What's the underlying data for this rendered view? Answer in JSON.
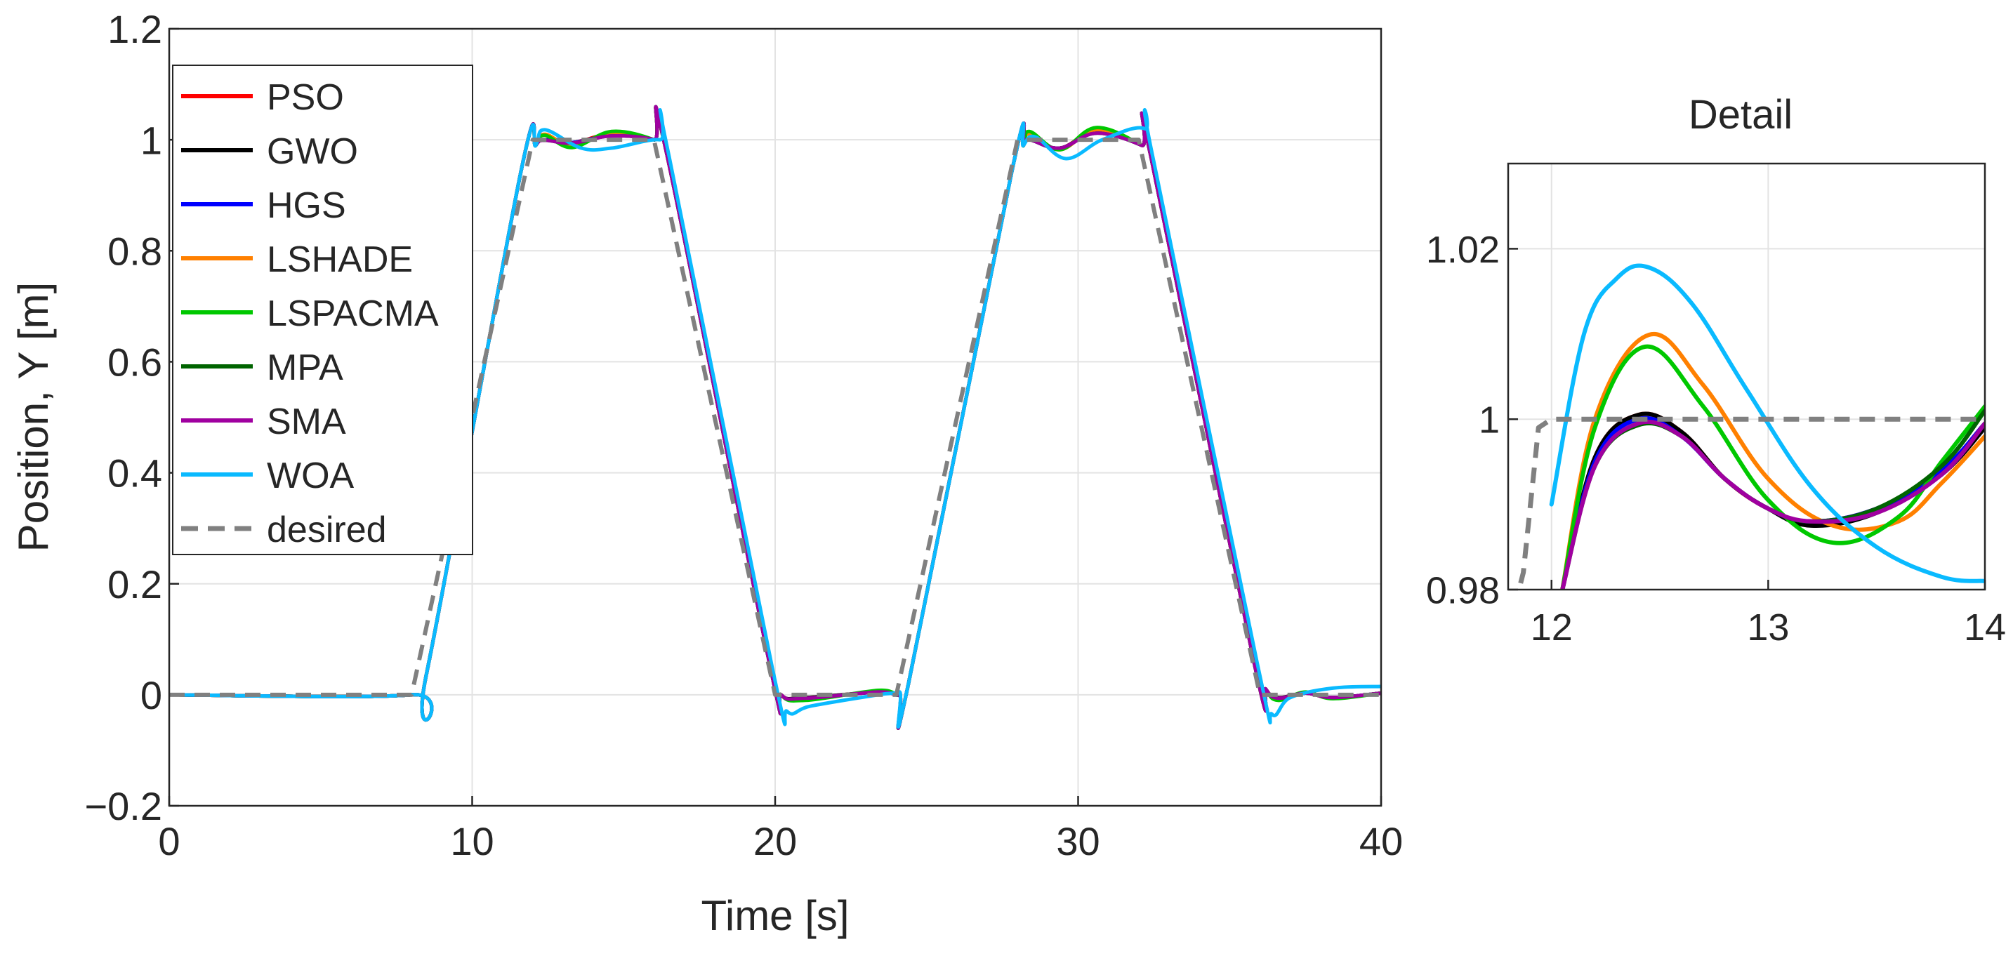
{
  "chart_data": [
    {
      "type": "line",
      "title": "",
      "xlabel": "Time [s]",
      "ylabel": "Position, Y [m]",
      "xlim": [
        0,
        40
      ],
      "ylim": [
        -0.2,
        1.2
      ],
      "xticks": [
        "0",
        "10",
        "20",
        "30",
        "40"
      ],
      "yticks": [
        "−0.2",
        "0",
        "0.2",
        "0.4",
        "0.6",
        "0.8",
        "1",
        "1.2"
      ],
      "grid": true,
      "legend_position": "top-left",
      "series": [
        {
          "name": "PSO",
          "color": "#ff0000",
          "x": [
            0,
            8,
            8.5,
            11.6,
            12.1,
            12.4,
            13.3,
            14.6,
            16.0,
            16.4,
            19.8,
            20.2,
            21.0,
            23.4,
            24.1,
            24.4,
            27.8,
            28.2,
            28.4,
            29.4,
            30.6,
            32.1,
            32.4,
            35.8,
            36.2,
            36.6,
            37.5,
            38.4,
            40
          ],
          "y": [
            0,
            0,
            0.04,
            0.94,
            0.99,
            1.0,
            0.995,
            1.01,
            1.0,
            0.98,
            0.06,
            0.0,
            -0.005,
            0.005,
            0.0,
            0.02,
            0.94,
            0.99,
            1.0,
            0.985,
            1.015,
            0.99,
            0.97,
            0.06,
            0.01,
            -0.005,
            0.003,
            -0.005,
            0.003
          ]
        },
        {
          "name": "GWO",
          "color": "#000000",
          "x": [
            0,
            8,
            8.5,
            11.6,
            12.1,
            12.4,
            13.3,
            14.6,
            16.0,
            16.4,
            19.8,
            20.2,
            21.0,
            23.4,
            24.1,
            24.4,
            27.8,
            28.2,
            28.4,
            29.4,
            30.6,
            32.1,
            32.4,
            35.8,
            36.2,
            36.6,
            37.5,
            38.4,
            40
          ],
          "y": [
            0,
            0,
            0.04,
            0.94,
            0.99,
            1.0,
            0.995,
            1.008,
            1.0,
            0.98,
            0.06,
            0.0,
            -0.005,
            0.005,
            0.0,
            0.02,
            0.94,
            0.99,
            1.0,
            0.985,
            1.013,
            0.99,
            0.97,
            0.06,
            0.01,
            -0.005,
            0.003,
            -0.005,
            0.003
          ]
        },
        {
          "name": "HGS",
          "color": "#0000ff",
          "x": [
            0,
            8,
            8.5,
            11.6,
            12.1,
            12.4,
            13.3,
            14.6,
            16.0,
            16.4,
            19.8,
            20.2,
            21.0,
            23.4,
            24.1,
            24.4,
            27.8,
            28.2,
            28.4,
            29.4,
            30.6,
            32.1,
            32.4,
            35.8,
            36.2,
            36.6,
            37.5,
            38.4,
            40
          ],
          "y": [
            0,
            0,
            0.04,
            0.94,
            0.99,
            1.0,
            0.995,
            1.008,
            1.0,
            0.98,
            0.06,
            0.0,
            -0.006,
            0.005,
            0.0,
            0.02,
            0.94,
            0.99,
            1.0,
            0.985,
            1.013,
            0.99,
            0.97,
            0.06,
            0.01,
            -0.006,
            0.003,
            -0.005,
            0.003
          ]
        },
        {
          "name": "LSHADE",
          "color": "#ff8000",
          "x": [
            0,
            8,
            8.5,
            11.6,
            12.1,
            12.4,
            13.3,
            14.6,
            16.0,
            16.4,
            19.8,
            20.2,
            21.0,
            23.4,
            24.1,
            24.4,
            27.8,
            28.2,
            28.4,
            29.4,
            30.6,
            32.1,
            32.4,
            35.8,
            36.2,
            36.6,
            37.5,
            38.4,
            40
          ],
          "y": [
            0,
            0,
            0.04,
            0.94,
            0.99,
            1.01,
            0.99,
            1.012,
            1.0,
            0.98,
            0.06,
            0.0,
            -0.008,
            0.006,
            0.0,
            0.02,
            0.94,
            0.99,
            1.01,
            0.982,
            1.018,
            0.99,
            0.97,
            0.06,
            0.01,
            -0.008,
            0.004,
            -0.006,
            0.003
          ]
        },
        {
          "name": "LSPACMA",
          "color": "#00c800",
          "x": [
            0,
            8,
            8.5,
            11.6,
            12.1,
            12.4,
            13.3,
            14.6,
            16.0,
            16.4,
            19.8,
            20.2,
            21.0,
            23.4,
            24.1,
            24.4,
            27.8,
            28.2,
            28.4,
            29.4,
            30.6,
            32.1,
            32.4,
            35.8,
            36.2,
            36.6,
            37.5,
            38.4,
            40
          ],
          "y": [
            0,
            0,
            0.04,
            0.94,
            0.99,
            1.008,
            0.986,
            1.015,
            1.0,
            0.98,
            0.06,
            0.0,
            -0.01,
            0.008,
            0.0,
            0.02,
            0.94,
            0.99,
            1.015,
            0.982,
            1.022,
            0.99,
            0.97,
            0.06,
            0.01,
            -0.01,
            0.005,
            -0.007,
            0.003
          ]
        },
        {
          "name": "MPA",
          "color": "#006400",
          "x": [
            0,
            8,
            8.5,
            11.6,
            12.1,
            12.4,
            13.3,
            14.6,
            16.0,
            16.4,
            19.8,
            20.2,
            21.0,
            23.4,
            24.1,
            24.4,
            27.8,
            28.2,
            28.4,
            29.4,
            30.6,
            32.1,
            32.4,
            35.8,
            36.2,
            36.6,
            37.5,
            38.4,
            40
          ],
          "y": [
            0,
            0,
            0.04,
            0.94,
            0.99,
            0.999,
            0.994,
            1.007,
            1.0,
            0.98,
            0.06,
            0.0,
            -0.006,
            0.005,
            0.0,
            0.02,
            0.94,
            0.99,
            1.0,
            0.985,
            1.012,
            0.99,
            0.97,
            0.06,
            0.01,
            -0.006,
            0.003,
            -0.005,
            0.003
          ]
        },
        {
          "name": "SMA",
          "color": "#a000a0",
          "x": [
            0,
            8,
            8.5,
            11.6,
            12.1,
            12.4,
            13.3,
            14.6,
            16.0,
            16.4,
            19.8,
            20.2,
            21.0,
            23.4,
            24.1,
            24.4,
            27.8,
            28.2,
            28.4,
            29.4,
            30.6,
            32.1,
            32.4,
            35.8,
            36.2,
            36.6,
            37.5,
            38.4,
            40
          ],
          "y": [
            0,
            0,
            0.04,
            0.94,
            0.99,
            0.999,
            0.994,
            1.007,
            1.0,
            0.98,
            0.06,
            0.0,
            -0.006,
            0.005,
            0.0,
            0.02,
            0.94,
            0.99,
            1.0,
            0.985,
            1.012,
            0.99,
            0.97,
            0.06,
            0.01,
            -0.006,
            0.003,
            -0.005,
            0.003
          ]
        },
        {
          "name": "WOA",
          "color": "#0abaff",
          "x": [
            0,
            8,
            8.5,
            11.6,
            12.1,
            12.4,
            13.6,
            14.6,
            16.2,
            16.5,
            19.9,
            20.4,
            21.2,
            23.4,
            24.1,
            24.4,
            27.8,
            28.2,
            28.6,
            29.6,
            30.8,
            32.2,
            32.5,
            35.9,
            36.4,
            37.0,
            38.4,
            40
          ],
          "y": [
            0,
            0,
            0.04,
            0.94,
            0.99,
            1.018,
            0.985,
            0.985,
            1.0,
            0.97,
            0.05,
            -0.03,
            -0.02,
            0.0,
            0.005,
            0.02,
            0.94,
            0.99,
            1.005,
            0.966,
            1.0,
            1.02,
            0.96,
            0.06,
            -0.035,
            -0.005,
            0.012,
            0.015
          ]
        },
        {
          "name": "desired",
          "color": "#808080",
          "dashed": true,
          "x": [
            0,
            8,
            12,
            16,
            20,
            24,
            28,
            32,
            36,
            40
          ],
          "y": [
            0,
            0,
            1,
            1,
            0,
            0,
            1,
            1,
            0,
            0
          ]
        }
      ]
    },
    {
      "type": "line",
      "title": "Detail",
      "xlim": [
        11.8,
        14
      ],
      "ylim": [
        0.98,
        1.03
      ],
      "xticks": [
        "12",
        "13",
        "14"
      ],
      "yticks": [
        "0.98",
        "1",
        "1.02"
      ],
      "grid": true,
      "series": [
        {
          "name": "PSO",
          "color": "#ff0000",
          "x": [
            12.05,
            12.2,
            12.4,
            12.6,
            12.8,
            13.0,
            13.2,
            13.5,
            13.8,
            14.0
          ],
          "y": [
            0.98,
            0.9955,
            1.0005,
            0.9985,
            0.993,
            0.9895,
            0.988,
            0.9895,
            0.994,
            0.9995
          ]
        },
        {
          "name": "GWO",
          "color": "#000000",
          "x": [
            12.05,
            12.2,
            12.4,
            12.6,
            12.8,
            13.0,
            13.2,
            13.5,
            13.8,
            14.0
          ],
          "y": [
            0.98,
            0.9955,
            1.0005,
            0.9985,
            0.993,
            0.9895,
            0.9875,
            0.989,
            0.9935,
            0.999
          ]
        },
        {
          "name": "HGS",
          "color": "#0000ff",
          "x": [
            12.05,
            12.2,
            12.4,
            12.6,
            12.8,
            13.0,
            13.2,
            13.5,
            13.8,
            14.0
          ],
          "y": [
            0.98,
            0.995,
            1.0,
            0.998,
            0.993,
            0.9895,
            0.988,
            0.9895,
            0.994,
            0.9995
          ]
        },
        {
          "name": "LSHADE",
          "color": "#ff8000",
          "x": [
            12.05,
            12.2,
            12.45,
            12.7,
            13.0,
            13.3,
            13.6,
            13.8,
            14.0
          ],
          "y": [
            0.98,
            1.0,
            1.0099,
            1.004,
            0.993,
            0.9875,
            0.988,
            0.9925,
            0.998
          ]
        },
        {
          "name": "LSPACMA",
          "color": "#00c800",
          "x": [
            12.05,
            12.2,
            12.43,
            12.7,
            13.0,
            13.3,
            13.6,
            13.8,
            14.0
          ],
          "y": [
            0.98,
            0.999,
            1.0085,
            1.0015,
            0.9905,
            0.9855,
            0.9885,
            0.995,
            1.0015
          ]
        },
        {
          "name": "MPA",
          "color": "#006400",
          "x": [
            12.05,
            12.2,
            12.4,
            12.6,
            12.8,
            13.0,
            13.2,
            13.5,
            13.8,
            14.0
          ],
          "y": [
            0.98,
            0.9945,
            0.9993,
            0.998,
            0.993,
            0.9895,
            0.988,
            0.9895,
            0.9945,
            1.001
          ]
        },
        {
          "name": "SMA",
          "color": "#a000a0",
          "x": [
            12.05,
            12.2,
            12.4,
            12.6,
            12.8,
            13.0,
            13.2,
            13.5,
            13.8,
            14.0
          ],
          "y": [
            0.98,
            0.9945,
            0.9995,
            0.998,
            0.993,
            0.9895,
            0.988,
            0.989,
            0.9935,
            0.9995
          ]
        },
        {
          "name": "WOA",
          "color": "#0abaff",
          "x": [
            12.0,
            12.15,
            12.3,
            12.45,
            12.65,
            12.9,
            13.2,
            13.5,
            13.8,
            14.0
          ],
          "y": [
            0.99,
            1.01,
            1.0165,
            1.0178,
            1.0135,
            1.0035,
            0.992,
            0.985,
            0.9815,
            0.981
          ]
        },
        {
          "name": "desired",
          "color": "#808080",
          "dashed": true,
          "x": [
            11.8,
            11.87,
            11.94,
            12.0,
            14.0
          ],
          "y": [
            0.975,
            0.982,
            0.999,
            1.0,
            1.0
          ]
        }
      ]
    }
  ]
}
